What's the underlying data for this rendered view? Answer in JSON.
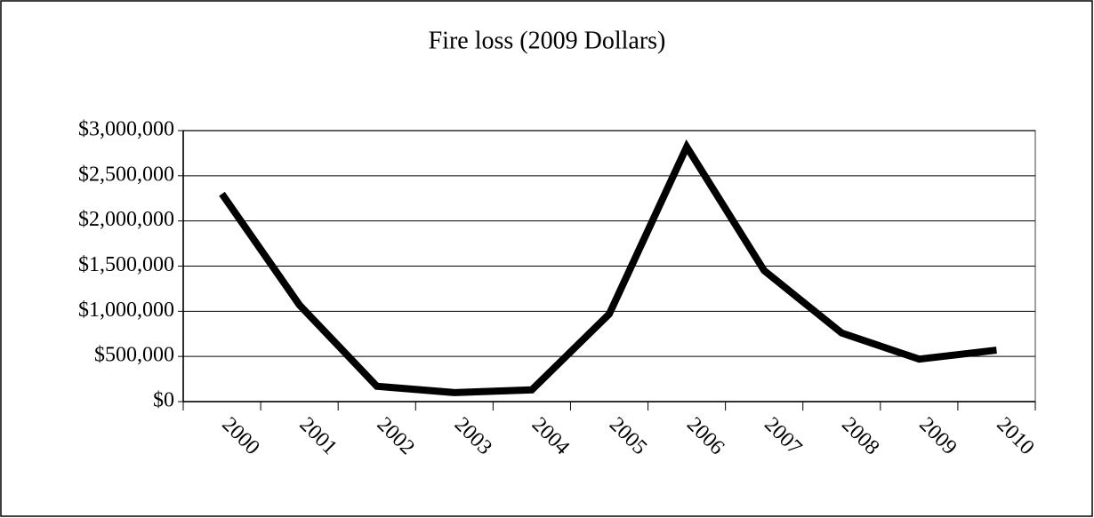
{
  "chart_data": {
    "type": "line",
    "title": "Fire loss (2009 Dollars)",
    "categories": [
      "2000",
      "2001",
      "2002",
      "2003",
      "2004",
      "2005",
      "2006",
      "2007",
      "2008",
      "2009",
      "2010"
    ],
    "series": [
      {
        "name": "Fire loss",
        "color": "#000000",
        "values": [
          2300000,
          1070000,
          170000,
          100000,
          130000,
          970000,
          2820000,
          1450000,
          760000,
          470000,
          570000
        ]
      }
    ],
    "ylim": [
      0,
      3000000
    ],
    "yticks": [
      {
        "value": 0,
        "label": "$0"
      },
      {
        "value": 500000,
        "label": "$500,000"
      },
      {
        "value": 1000000,
        "label": "$1,000,000"
      },
      {
        "value": 1500000,
        "label": "$1,500,000"
      },
      {
        "value": 2000000,
        "label": "$2,000,000"
      },
      {
        "value": 2500000,
        "label": "$2,500,000"
      },
      {
        "value": 3000000,
        "label": "$3,000,000"
      }
    ],
    "grid": true
  }
}
